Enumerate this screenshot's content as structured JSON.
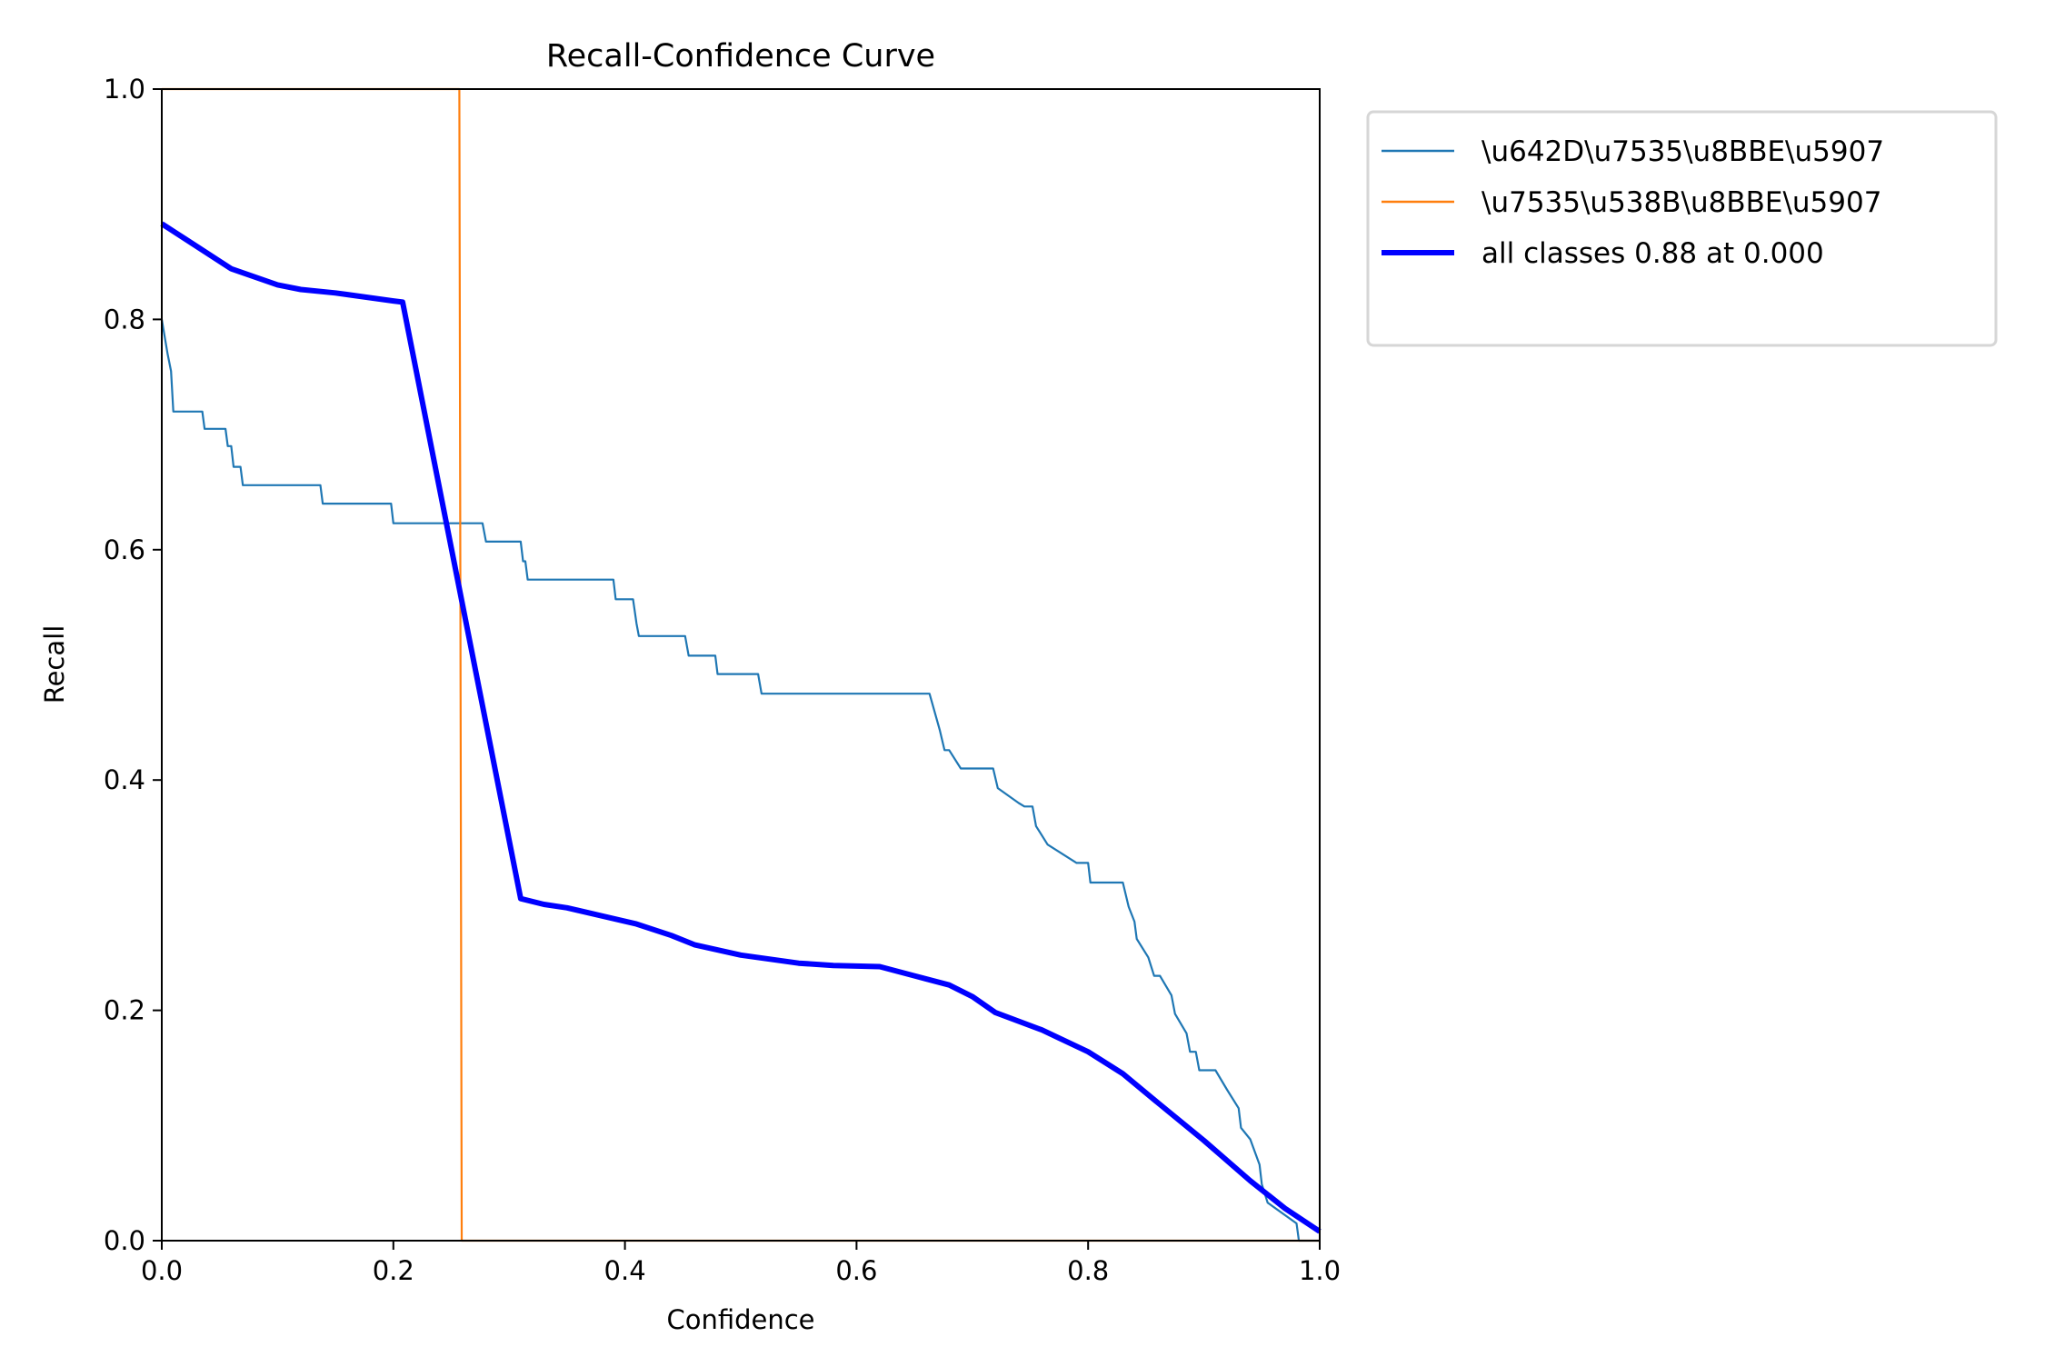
{
  "chart_data": {
    "type": "line",
    "title": "Recall-Confidence Curve",
    "xlabel": "Confidence",
    "ylabel": "Recall",
    "xlim": [
      0,
      1
    ],
    "ylim": [
      0,
      1
    ],
    "xticks": [
      "0.0",
      "0.2",
      "0.4",
      "0.6",
      "0.8",
      "1.0"
    ],
    "yticks": [
      "0.0",
      "0.2",
      "0.4",
      "0.6",
      "0.8",
      "1.0"
    ],
    "grid": false,
    "legend_position": "outside-top-right",
    "series": [
      {
        "name": "\\u642D\\u7535\\u8BBE\\u5907",
        "color": "#1f77b4",
        "width": "thin",
        "points": [
          [
            0,
            0.8
          ],
          [
            0.005,
            0.77
          ],
          [
            0.008,
            0.755
          ],
          [
            0.01,
            0.72
          ],
          [
            0.035,
            0.72
          ],
          [
            0.037,
            0.705
          ],
          [
            0.055,
            0.705
          ],
          [
            0.057,
            0.69
          ],
          [
            0.06,
            0.69
          ],
          [
            0.062,
            0.672
          ],
          [
            0.068,
            0.672
          ],
          [
            0.07,
            0.656
          ],
          [
            0.137,
            0.656
          ],
          [
            0.139,
            0.64
          ],
          [
            0.198,
            0.64
          ],
          [
            0.2,
            0.623
          ],
          [
            0.277,
            0.623
          ],
          [
            0.28,
            0.607
          ],
          [
            0.31,
            0.607
          ],
          [
            0.312,
            0.59
          ],
          [
            0.314,
            0.59
          ],
          [
            0.316,
            0.574
          ],
          [
            0.39,
            0.574
          ],
          [
            0.392,
            0.557
          ],
          [
            0.407,
            0.557
          ],
          [
            0.41,
            0.536
          ],
          [
            0.412,
            0.525
          ],
          [
            0.452,
            0.525
          ],
          [
            0.455,
            0.508
          ],
          [
            0.478,
            0.508
          ],
          [
            0.48,
            0.492
          ],
          [
            0.515,
            0.492
          ],
          [
            0.518,
            0.475
          ],
          [
            0.663,
            0.475
          ],
          [
            0.672,
            0.443
          ],
          [
            0.676,
            0.426
          ],
          [
            0.68,
            0.426
          ],
          [
            0.69,
            0.41
          ],
          [
            0.718,
            0.41
          ],
          [
            0.722,
            0.393
          ],
          [
            0.74,
            0.38
          ],
          [
            0.745,
            0.377
          ],
          [
            0.752,
            0.377
          ],
          [
            0.755,
            0.36
          ],
          [
            0.765,
            0.344
          ],
          [
            0.79,
            0.328
          ],
          [
            0.8,
            0.328
          ],
          [
            0.802,
            0.311
          ],
          [
            0.83,
            0.311
          ],
          [
            0.835,
            0.29
          ],
          [
            0.84,
            0.277
          ],
          [
            0.842,
            0.262
          ],
          [
            0.852,
            0.246
          ],
          [
            0.857,
            0.23
          ],
          [
            0.862,
            0.23
          ],
          [
            0.872,
            0.213
          ],
          [
            0.875,
            0.197
          ],
          [
            0.885,
            0.18
          ],
          [
            0.888,
            0.164
          ],
          [
            0.893,
            0.164
          ],
          [
            0.896,
            0.148
          ],
          [
            0.91,
            0.148
          ],
          [
            0.92,
            0.131
          ],
          [
            0.93,
            0.115
          ],
          [
            0.932,
            0.098
          ],
          [
            0.94,
            0.088
          ],
          [
            0.948,
            0.066
          ],
          [
            0.95,
            0.049
          ],
          [
            0.955,
            0.033
          ],
          [
            0.98,
            0.015
          ],
          [
            0.982,
            0
          ],
          [
            1.0,
            0
          ]
        ]
      },
      {
        "name": "\\u7535\\u538B\\u8BBE\\u5907",
        "color": "#ff7f0e",
        "width": "thin",
        "points": [
          [
            0,
            1
          ],
          [
            0.257,
            1
          ],
          [
            0.259,
            0
          ],
          [
            1,
            0
          ]
        ]
      },
      {
        "name": "all classes 0.88 at 0.000",
        "color": "#0000ff",
        "width": "thick",
        "points": [
          [
            0,
            0.883
          ],
          [
            0.02,
            0.87
          ],
          [
            0.06,
            0.844
          ],
          [
            0.1,
            0.83
          ],
          [
            0.12,
            0.826
          ],
          [
            0.15,
            0.823
          ],
          [
            0.2,
            0.816
          ],
          [
            0.208,
            0.815
          ],
          [
            0.31,
            0.297
          ],
          [
            0.33,
            0.292
          ],
          [
            0.35,
            0.289
          ],
          [
            0.38,
            0.282
          ],
          [
            0.41,
            0.275
          ],
          [
            0.44,
            0.265
          ],
          [
            0.46,
            0.257
          ],
          [
            0.5,
            0.248
          ],
          [
            0.55,
            0.241
          ],
          [
            0.58,
            0.239
          ],
          [
            0.62,
            0.238
          ],
          [
            0.65,
            0.23
          ],
          [
            0.68,
            0.222
          ],
          [
            0.7,
            0.212
          ],
          [
            0.72,
            0.198
          ],
          [
            0.76,
            0.183
          ],
          [
            0.8,
            0.164
          ],
          [
            0.83,
            0.145
          ],
          [
            0.86,
            0.12
          ],
          [
            0.9,
            0.087
          ],
          [
            0.94,
            0.052
          ],
          [
            0.97,
            0.028
          ],
          [
            1.0,
            0.008
          ]
        ]
      }
    ]
  }
}
